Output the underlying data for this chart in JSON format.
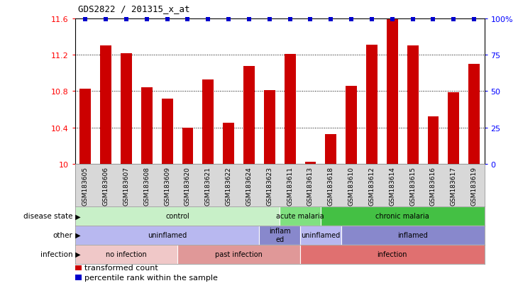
{
  "title": "GDS2822 / 201315_x_at",
  "samples": [
    "GSM183605",
    "GSM183606",
    "GSM183607",
    "GSM183608",
    "GSM183609",
    "GSM183620",
    "GSM183621",
    "GSM183622",
    "GSM183624",
    "GSM183623",
    "GSM183611",
    "GSM183613",
    "GSM183618",
    "GSM183610",
    "GSM183612",
    "GSM183614",
    "GSM183615",
    "GSM183616",
    "GSM183617",
    "GSM183619"
  ],
  "bar_values": [
    10.83,
    11.3,
    11.22,
    10.84,
    10.72,
    10.4,
    10.93,
    10.45,
    11.08,
    10.81,
    11.21,
    10.02,
    10.33,
    10.86,
    11.31,
    11.59,
    11.3,
    10.52,
    10.79,
    11.1
  ],
  "bar_color": "#cc0000",
  "percentile_color": "#0000cc",
  "ylim_left": [
    10.0,
    11.6
  ],
  "ylim_right": [
    0,
    100
  ],
  "yticks_left": [
    10.0,
    10.4,
    10.8,
    11.2,
    11.6
  ],
  "ytick_labels_left": [
    "10",
    "10.4",
    "10.8",
    "11.2",
    "11.6"
  ],
  "yticks_right": [
    0,
    25,
    50,
    75,
    100
  ],
  "ytick_labels_right": [
    "0",
    "25",
    "50",
    "75",
    "100%"
  ],
  "disease_state_groups": [
    {
      "label": "control",
      "start": 0,
      "end": 10,
      "color": "#c8f0c8"
    },
    {
      "label": "acute malaria",
      "start": 10,
      "end": 12,
      "color": "#80e080"
    },
    {
      "label": "chronic malaria",
      "start": 12,
      "end": 20,
      "color": "#44c044"
    }
  ],
  "other_groups": [
    {
      "label": "uninflamed",
      "start": 0,
      "end": 9,
      "color": "#b8b8f0"
    },
    {
      "label": "inflam\ned",
      "start": 9,
      "end": 11,
      "color": "#8888cc"
    },
    {
      "label": "uninflamed",
      "start": 11,
      "end": 13,
      "color": "#b8b8f0"
    },
    {
      "label": "inflamed",
      "start": 13,
      "end": 20,
      "color": "#8888cc"
    }
  ],
  "infection_groups": [
    {
      "label": "no infection",
      "start": 0,
      "end": 5,
      "color": "#f0c8c8"
    },
    {
      "label": "past infection",
      "start": 5,
      "end": 11,
      "color": "#e09898"
    },
    {
      "label": "infection",
      "start": 11,
      "end": 20,
      "color": "#e07070"
    }
  ],
  "ann_row_names": [
    "disease state",
    "other",
    "infection"
  ],
  "legend_items": [
    {
      "color": "#cc0000",
      "label": "transformed count"
    },
    {
      "color": "#0000cc",
      "label": "percentile rank within the sample"
    }
  ]
}
